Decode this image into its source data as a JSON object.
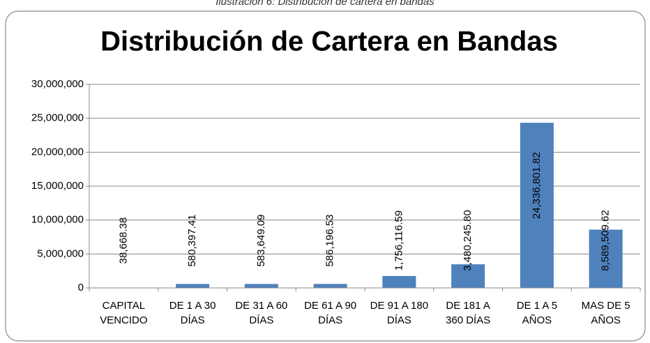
{
  "caption": "Ilustración 6: Distribución de cartera en bandas",
  "chart_data": {
    "type": "bar",
    "title": "Distribución de Cartera en Bandas",
    "categories": [
      "CAPITAL VENCIDO",
      "DE 1 A 30 DÍAS",
      "DE 31 A 60 DÍAS",
      "DE 61 A 90 DÍAS",
      "DE 91 A 180 DÍAS",
      "DE 181 A 360 DÍAS",
      "DE 1 A 5 AÑOS",
      "MAS DE 5 AÑOS"
    ],
    "values": [
      38668.38,
      580397.41,
      583649.09,
      586196.53,
      1756116.59,
      3480245.8,
      24336801.82,
      8589509.62
    ],
    "value_labels": [
      "38,668.38",
      "580,397.41",
      "583,649.09",
      "586,196.53",
      "1,756,116.59",
      "3,480,245.80",
      "24,336,801.82",
      "8,589,509.62"
    ],
    "color": "#4f81bd",
    "ylim": [
      0,
      30000000
    ],
    "yticks": [
      0,
      {
        "value": 5000000,
        "label": "5,000,000"
      },
      {
        "value": 10000000,
        "label": "10,000,000"
      },
      {
        "value": 15000000,
        "label": "15,000,000"
      },
      {
        "value": 20000000,
        "label": "20,000,000"
      },
      {
        "value": 25000000,
        "label": "25,000,000"
      },
      {
        "value": 30000000,
        "label": "30,000,000"
      }
    ],
    "grid": true
  }
}
